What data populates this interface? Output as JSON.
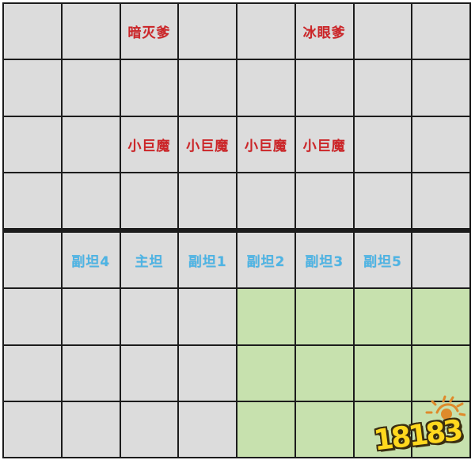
{
  "grid": {
    "rows": 8,
    "cols": 8,
    "divider_after_row": 4,
    "colors": {
      "cell": "#dcdcdc",
      "highlight": "#c7e1ae",
      "line": "#1c1c1c",
      "enemy_text": "#cc2528",
      "ally_text": "#4db4e4"
    },
    "highlight_region": {
      "rows": [
        6,
        7,
        8
      ],
      "cols": [
        5,
        6,
        7,
        8
      ]
    },
    "labels": [
      {
        "row": 1,
        "col": 3,
        "text": "暗灭爹",
        "type": "enemy"
      },
      {
        "row": 1,
        "col": 6,
        "text": "冰眼爹",
        "type": "enemy"
      },
      {
        "row": 3,
        "col": 3,
        "text": "小巨魔",
        "type": "enemy"
      },
      {
        "row": 3,
        "col": 4,
        "text": "小巨魔",
        "type": "enemy"
      },
      {
        "row": 3,
        "col": 5,
        "text": "小巨魔",
        "type": "enemy"
      },
      {
        "row": 3,
        "col": 6,
        "text": "小巨魔",
        "type": "enemy"
      },
      {
        "row": 5,
        "col": 2,
        "text": "副坦4",
        "type": "ally"
      },
      {
        "row": 5,
        "col": 3,
        "text": "主坦",
        "type": "ally"
      },
      {
        "row": 5,
        "col": 4,
        "text": "副坦1",
        "type": "ally"
      },
      {
        "row": 5,
        "col": 5,
        "text": "副坦2",
        "type": "ally"
      },
      {
        "row": 5,
        "col": 6,
        "text": "副坦3",
        "type": "ally"
      },
      {
        "row": 5,
        "col": 7,
        "text": "副坦5",
        "type": "ally"
      }
    ]
  },
  "watermark": {
    "text": "18183",
    "sun_icon": "sun-doodle"
  }
}
